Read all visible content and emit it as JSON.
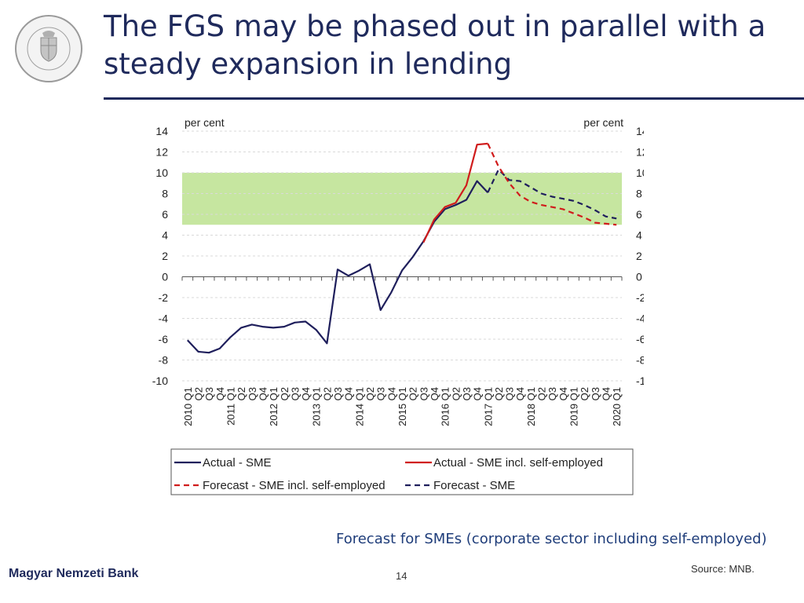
{
  "slide": {
    "title": "The FGS may be phased out in parallel with a steady expansion in lending",
    "subtitle": "Forecast for SMEs (corporate sector including self-employed)",
    "source": "Source: MNB.",
    "footer_bank": "Magyar Nemzeti Bank",
    "page_number": "14",
    "logo_text": "MAGYAR NEMZETI BANK"
  },
  "chart_data": {
    "type": "line",
    "title": "",
    "ylabel_left": "per cent",
    "ylabel_right": "per cent",
    "ylim": [
      -10,
      14
    ],
    "yticks": [
      14,
      12,
      10,
      8,
      6,
      4,
      2,
      0,
      -2,
      -4,
      -6,
      -8,
      -10
    ],
    "band": {
      "from": 5,
      "to": 10,
      "color": "#c6e6a0"
    },
    "x": [
      "2010 Q1",
      "Q2",
      "Q3",
      "Q4",
      "2011 Q1",
      "Q2",
      "Q3",
      "Q4",
      "2012 Q1",
      "Q2",
      "Q3",
      "Q4",
      "2013 Q1",
      "Q2",
      "Q3",
      "Q4",
      "2014 Q1",
      "Q2",
      "Q3",
      "Q4",
      "2015 Q1",
      "Q2",
      "Q3",
      "Q4",
      "2016 Q1",
      "Q2",
      "Q3",
      "Q4",
      "2017 Q1",
      "Q2",
      "Q3",
      "Q4",
      "2018 Q1",
      "Q2",
      "Q3",
      "Q4",
      "2019 Q1",
      "Q2",
      "Q3",
      "Q4",
      "2020 Q1"
    ],
    "series": [
      {
        "name": "Actual - SME",
        "color": "#1f1f5c",
        "dashed": false,
        "values": [
          -6.1,
          -7.2,
          -7.3,
          -6.9,
          -5.8,
          -4.9,
          -4.6,
          -4.8,
          -4.9,
          -4.8,
          -4.4,
          -4.3,
          -5.1,
          -6.4,
          0.7,
          0.1,
          0.6,
          1.2,
          -3.2,
          -1.5,
          0.6,
          1.9,
          3.4,
          5.3,
          6.5,
          6.9,
          7.4,
          9.2,
          8.1,
          null,
          null,
          null,
          null,
          null,
          null,
          null,
          null,
          null,
          null,
          null,
          null
        ]
      },
      {
        "name": "Actual - SME incl. self-employed",
        "color": "#d01c1c",
        "dashed": false,
        "values": [
          null,
          null,
          null,
          null,
          null,
          null,
          null,
          null,
          null,
          null,
          null,
          null,
          null,
          null,
          null,
          null,
          null,
          null,
          null,
          null,
          null,
          null,
          3.3,
          5.5,
          6.7,
          7.1,
          8.8,
          12.7,
          12.8,
          null,
          null,
          null,
          null,
          null,
          null,
          null,
          null,
          null,
          null,
          null,
          null
        ]
      },
      {
        "name": "Forecast - SME incl. self-employed",
        "color": "#d01c1c",
        "dashed": true,
        "values": [
          null,
          null,
          null,
          null,
          null,
          null,
          null,
          null,
          null,
          null,
          null,
          null,
          null,
          null,
          null,
          null,
          null,
          null,
          null,
          null,
          null,
          null,
          null,
          null,
          null,
          null,
          null,
          null,
          12.8,
          10.6,
          9.0,
          7.8,
          7.2,
          6.9,
          6.7,
          6.5,
          6.1,
          5.7,
          5.2,
          5.1,
          5.0
        ]
      },
      {
        "name": "Forecast - SME",
        "color": "#1f1f5c",
        "dashed": true,
        "values": [
          null,
          null,
          null,
          null,
          null,
          null,
          null,
          null,
          null,
          null,
          null,
          null,
          null,
          null,
          null,
          null,
          null,
          null,
          null,
          null,
          null,
          null,
          null,
          null,
          null,
          null,
          null,
          null,
          8.1,
          10.3,
          9.3,
          9.2,
          8.6,
          8.0,
          7.7,
          7.5,
          7.3,
          6.9,
          6.4,
          5.8,
          5.6
        ]
      }
    ],
    "legend_position": "bottom",
    "legend": [
      "Actual - SME",
      "Actual - SME incl. self-employed",
      "Forecast - SME incl. self-employed",
      "Forecast - SME"
    ],
    "grid": true
  }
}
